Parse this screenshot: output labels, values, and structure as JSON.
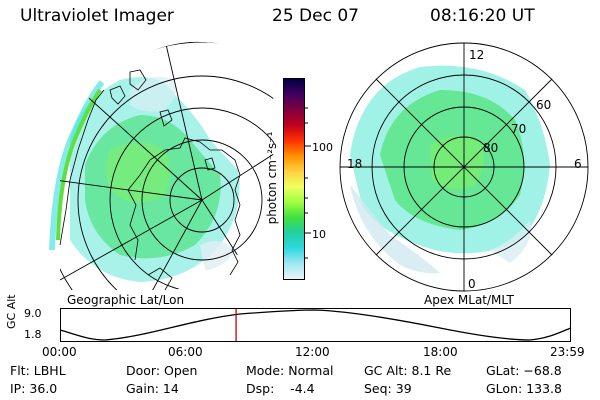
{
  "header": {
    "instrument": "Ultraviolet Imager",
    "date": "25 Dec 07",
    "time": "08:16:20 UT"
  },
  "left_map": {
    "caption": "Geographic Lat/Lon"
  },
  "right_map": {
    "caption": "Apex MLat/MLT",
    "mlt_labels": {
      "top": "12",
      "left": "18",
      "right": "6",
      "bottom": "0"
    },
    "lat_labels": [
      "60",
      "70",
      "80"
    ]
  },
  "colorbar": {
    "unit": "photon cm⁻²s⁻¹",
    "scale": "log",
    "ticks": [
      "100",
      "10"
    ],
    "colors": [
      "#000040",
      "#400060",
      "#800040",
      "#c00020",
      "#ff3000",
      "#ff9000",
      "#ffd040",
      "#f0ff60",
      "#a0ff40",
      "#40e040",
      "#20d0a0",
      "#30d8e0",
      "#a0e8f0",
      "#e8f4f8"
    ]
  },
  "timeline": {
    "ylabel": "GC Alt",
    "ytick_top": "9.0",
    "ytick_bottom": "1.8",
    "xticks": [
      "00:00",
      "06:00",
      "12:00",
      "18:00",
      "23:59"
    ],
    "current_marker_hours": 8.27,
    "marker_color": "#cc0000"
  },
  "info": {
    "filter": "Flt: LBHL",
    "ip": "IP: 36.0",
    "door": "Door: Open",
    "gain": "Gain: 14",
    "mode": "Mode: Normal",
    "dsp": "Dsp:    -4.4",
    "gc_alt": "GC Alt: 8.1 Re",
    "seq": "Seq: 39",
    "glat": "GLat: −68.8",
    "glon": "GLon: 133.8"
  }
}
